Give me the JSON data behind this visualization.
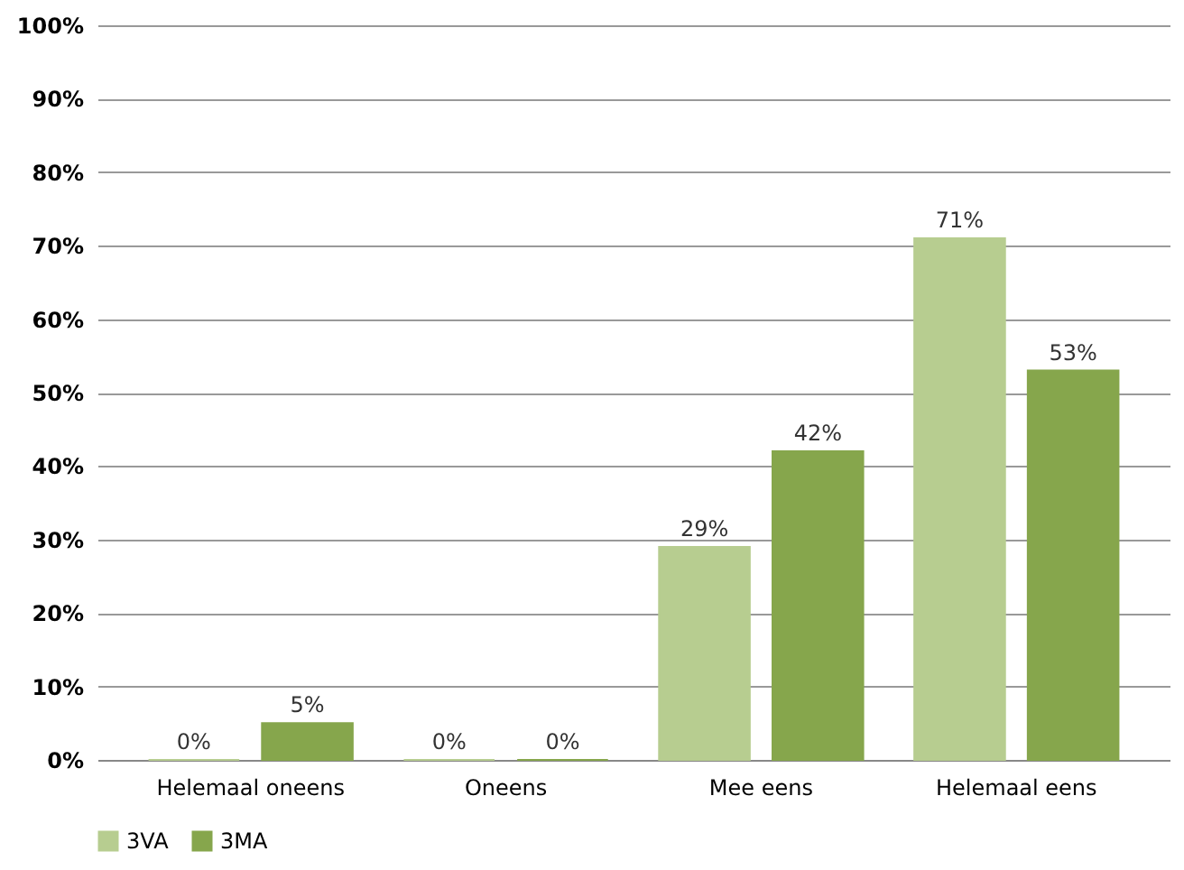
{
  "chart_data": {
    "type": "bar",
    "categories": [
      "Helemaal oneens",
      "Oneens",
      "Mee eens",
      "Helemaal eens"
    ],
    "series": [
      {
        "name": "3VA",
        "color": "#b7cd90",
        "values": [
          0,
          0,
          29,
          71
        ],
        "value_labels": [
          "0%",
          "0%",
          "29%",
          "71%"
        ]
      },
      {
        "name": "3MA",
        "color": "#86a64c",
        "values": [
          5,
          0,
          42,
          53
        ],
        "value_labels": [
          "5%",
          "0%",
          "42%",
          "53%"
        ]
      }
    ],
    "ylim": [
      0,
      100
    ],
    "yticks": [
      {
        "value": 0,
        "label": "0%"
      },
      {
        "value": 10,
        "label": "10%"
      },
      {
        "value": 20,
        "label": "20%"
      },
      {
        "value": 30,
        "label": "30%"
      },
      {
        "value": 40,
        "label": "40%"
      },
      {
        "value": 50,
        "label": "50%"
      },
      {
        "value": 60,
        "label": "60%"
      },
      {
        "value": 70,
        "label": "70%"
      },
      {
        "value": 80,
        "label": "80%"
      },
      {
        "value": 90,
        "label": "90%"
      },
      {
        "value": 100,
        "label": "100%"
      }
    ],
    "grid": "y",
    "legend": "bottom"
  }
}
